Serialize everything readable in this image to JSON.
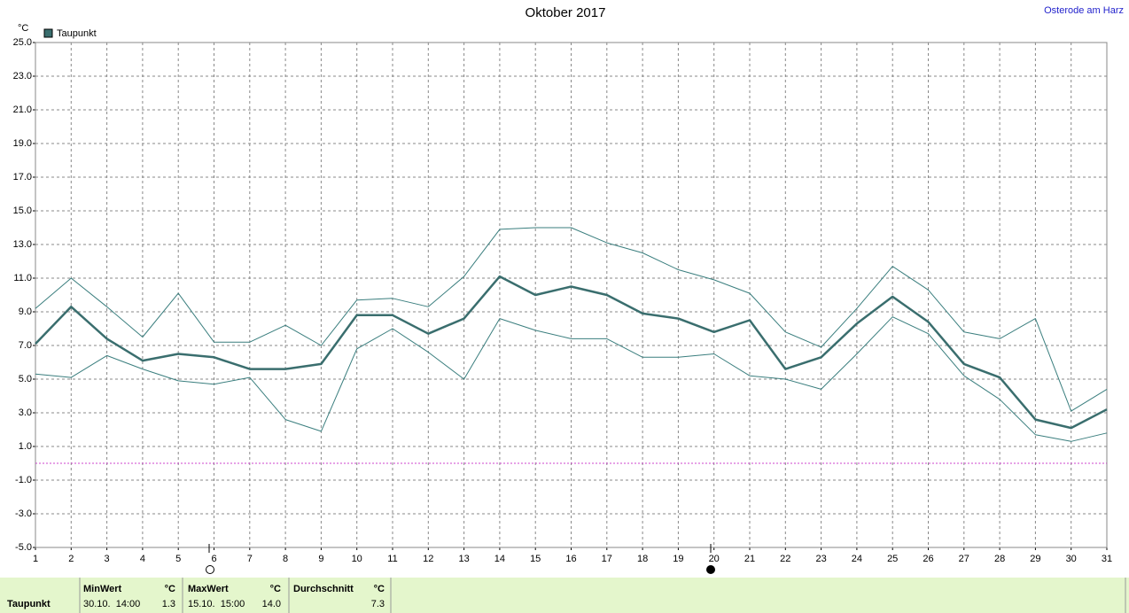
{
  "chart_data": {
    "type": "line",
    "title": "Oktober 2017",
    "location": "Osterode am Harz",
    "y_unit": "°C",
    "x": [
      1,
      2,
      3,
      4,
      5,
      6,
      7,
      8,
      9,
      10,
      11,
      12,
      13,
      14,
      15,
      16,
      17,
      18,
      19,
      20,
      21,
      22,
      23,
      24,
      25,
      26,
      27,
      28,
      29,
      30,
      31
    ],
    "xlim": [
      1,
      31
    ],
    "xticks": [
      1,
      2,
      3,
      4,
      5,
      6,
      7,
      8,
      9,
      10,
      11,
      12,
      13,
      14,
      15,
      16,
      17,
      18,
      19,
      20,
      21,
      22,
      23,
      24,
      25,
      26,
      27,
      28,
      29,
      30,
      31
    ],
    "ylim": [
      -5,
      25
    ],
    "yticks": [
      {
        "value": 25,
        "label": "25.0"
      },
      {
        "value": 23,
        "label": "23.0"
      },
      {
        "value": 21,
        "label": "21.0"
      },
      {
        "value": 19,
        "label": "19.0"
      },
      {
        "value": 17,
        "label": "17.0"
      },
      {
        "value": 15,
        "label": "15.0"
      },
      {
        "value": 13,
        "label": "13.0"
      },
      {
        "value": 11,
        "label": "11.0"
      },
      {
        "value": 9,
        "label": "9.0"
      },
      {
        "value": 7,
        "label": "7.0"
      },
      {
        "value": 5,
        "label": "5.0"
      },
      {
        "value": 3,
        "label": "3.0"
      },
      {
        "value": 1,
        "label": "1.0"
      },
      {
        "value": -1,
        "label": "-1.0"
      },
      {
        "value": -3,
        "label": "-3.0"
      },
      {
        "value": -5,
        "label": "-5.0"
      }
    ],
    "grid": true,
    "legend": "top-left",
    "reference_line": {
      "value": 0,
      "color": "#cc44cc"
    },
    "series": [
      {
        "name": "Taupunkt",
        "color": "#3a6e6e",
        "width": 2.5,
        "values": [
          7.1,
          9.3,
          7.4,
          6.1,
          6.5,
          6.3,
          5.6,
          5.6,
          5.9,
          8.8,
          8.8,
          7.7,
          8.6,
          11.1,
          10.0,
          10.5,
          10.0,
          8.9,
          8.6,
          7.8,
          8.5,
          5.6,
          6.3,
          8.3,
          9.9,
          8.4,
          5.9,
          5.1,
          2.6,
          2.1,
          3.2
        ]
      },
      {
        "color": "#3a7e7e",
        "width": 1,
        "values": [
          9.2,
          11.0,
          9.3,
          7.5,
          10.1,
          7.2,
          7.2,
          8.2,
          7.0,
          9.7,
          9.8,
          9.3,
          11.1,
          13.9,
          14.0,
          14.0,
          13.1,
          12.5,
          11.5,
          10.9,
          10.1,
          7.8,
          6.9,
          9.2,
          11.7,
          10.3,
          7.8,
          7.4,
          8.6,
          3.1,
          4.4
        ]
      },
      {
        "color": "#3a7e7e",
        "width": 1,
        "values": [
          5.3,
          5.1,
          6.4,
          5.6,
          4.9,
          4.7,
          5.1,
          2.6,
          1.9,
          6.8,
          8.0,
          6.6,
          5.0,
          8.6,
          7.9,
          7.4,
          7.4,
          6.3,
          6.3,
          6.5,
          5.2,
          5.0,
          4.4,
          6.5,
          8.7,
          7.7,
          5.2,
          3.8,
          1.7,
          1.3,
          1.8
        ]
      }
    ]
  },
  "summary": {
    "label": "Taupunkt",
    "min": {
      "title": "MinWert",
      "unit": "°C",
      "when": "30.10.  14:00",
      "value": "1.3"
    },
    "max": {
      "title": "MaxWert",
      "unit": "°C",
      "when": "15.10.  15:00",
      "value": "14.0"
    },
    "avg": {
      "title": "Durchschnitt",
      "unit": "°C",
      "value": "7.3"
    }
  }
}
